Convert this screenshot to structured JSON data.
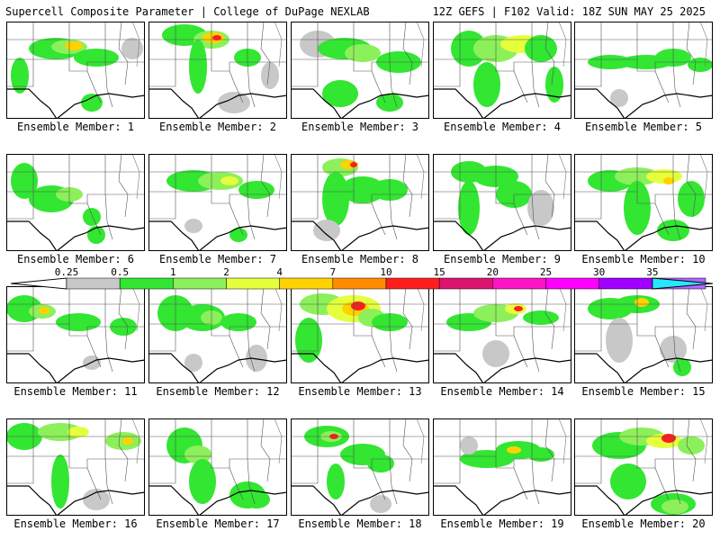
{
  "header": {
    "title_left": "Supercell Composite Parameter | College of DuPage NEXLAB",
    "title_right": "12Z GEFS | F102 Valid: 18Z SUN MAY 25 2025"
  },
  "colorbar": {
    "labels": [
      "0.25",
      "0.5",
      "1",
      "2",
      "4",
      "7",
      "10",
      "15",
      "20",
      "25",
      "30",
      "35"
    ],
    "colors": [
      "#c8c8c8",
      "#32e632",
      "#8cf05a",
      "#e6ff3c",
      "#ffd200",
      "#ff8c00",
      "#ff1e1e",
      "#dc146e",
      "#ff14c8",
      "#ff00ff",
      "#a000ff",
      "#b464ff",
      "#28e6ff"
    ]
  },
  "panels": [
    {
      "label": "Ensemble Member: 1"
    },
    {
      "label": "Ensemble Member: 2"
    },
    {
      "label": "Ensemble Member: 3"
    },
    {
      "label": "Ensemble Member: 4"
    },
    {
      "label": "Ensemble Member: 5"
    },
    {
      "label": "Ensemble Member: 6"
    },
    {
      "label": "Ensemble Member: 7"
    },
    {
      "label": "Ensemble Member: 8"
    },
    {
      "label": "Ensemble Member: 9"
    },
    {
      "label": "Ensemble Member: 10"
    },
    {
      "label": "Ensemble Member: 11"
    },
    {
      "label": "Ensemble Member: 12"
    },
    {
      "label": "Ensemble Member: 13"
    },
    {
      "label": "Ensemble Member: 14"
    },
    {
      "label": "Ensemble Member: 15"
    },
    {
      "label": "Ensemble Member: 16"
    },
    {
      "label": "Ensemble Member: 17"
    },
    {
      "label": "Ensemble Member: 18"
    },
    {
      "label": "Ensemble Member: 19"
    },
    {
      "label": "Ensemble Member: 20"
    }
  ]
}
